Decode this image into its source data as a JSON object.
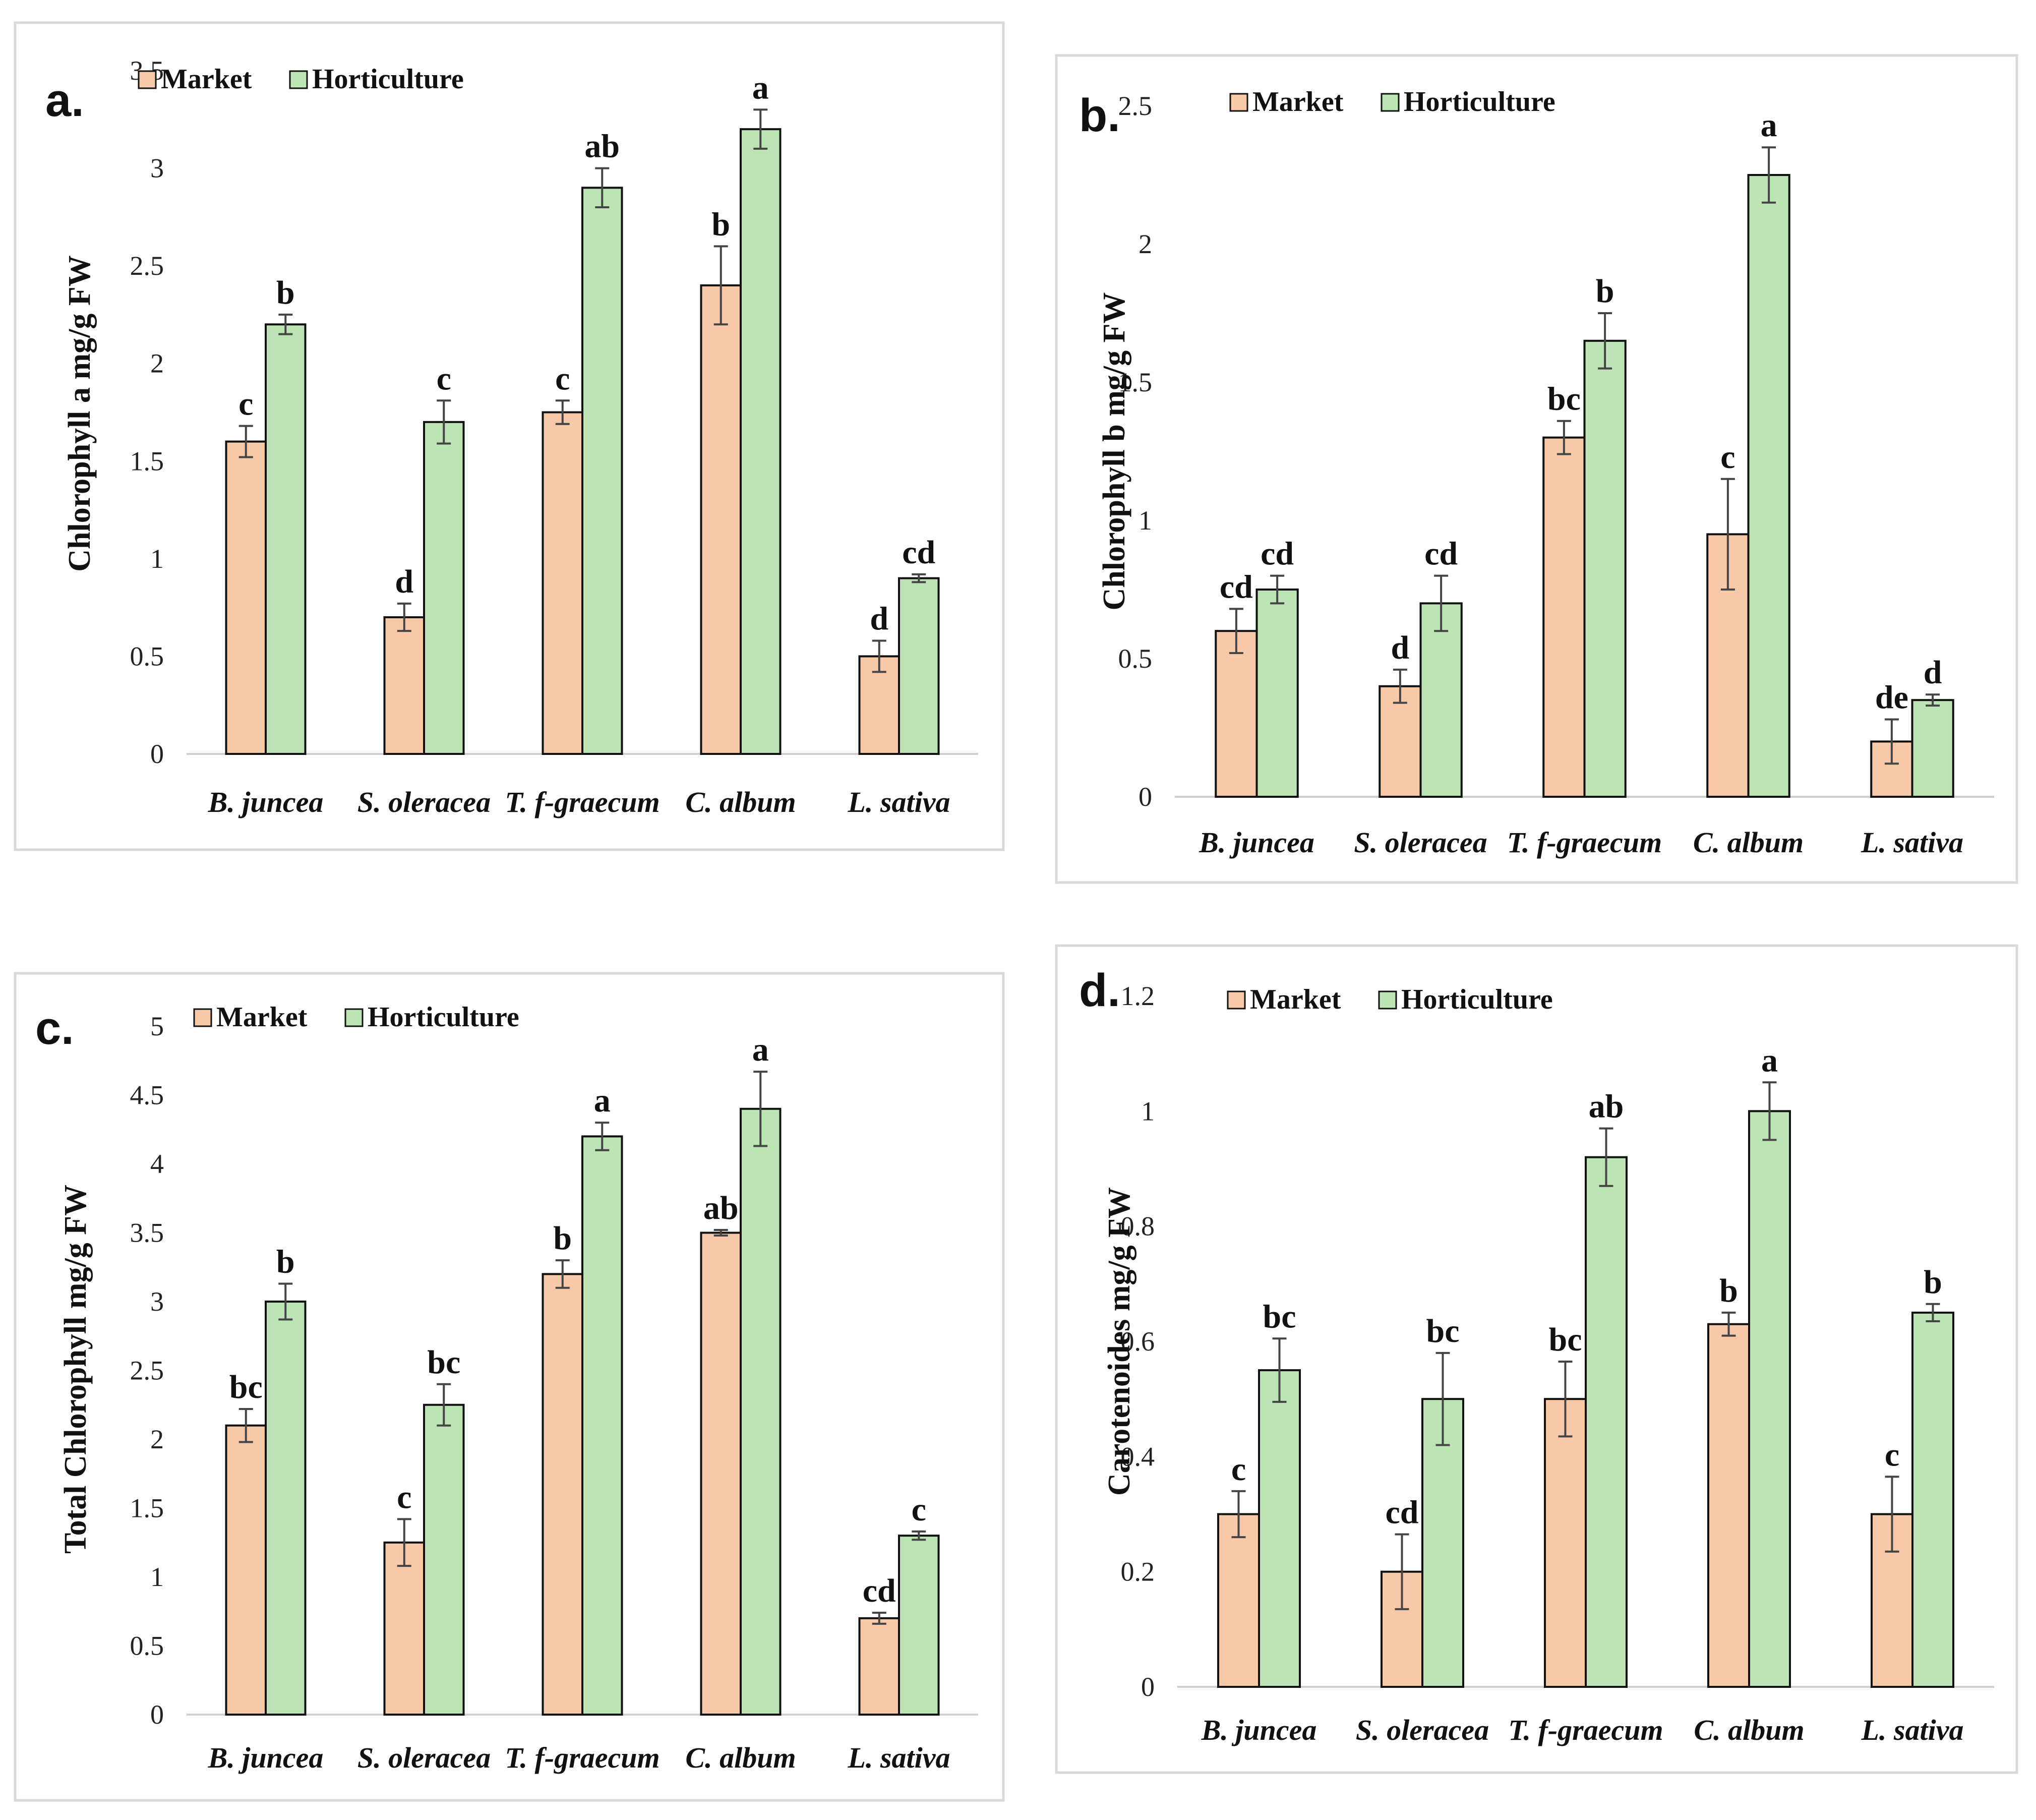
{
  "colors": {
    "market": "#f8c9a9",
    "horticulture": "#bde4b4",
    "outline": "#111111",
    "errorbar": "#444444",
    "panel_border": "#d9d9d9"
  },
  "chart_data": [
    {
      "type": "bar",
      "panel_label": "a.",
      "ylabel": "Chlorophyll  a mg/g FW",
      "ylim": [
        0,
        3.5
      ],
      "yticks": [
        "0",
        "0.5",
        "1",
        "1.5",
        "2",
        "2.5",
        "3",
        "3.5"
      ],
      "categories": [
        "B. juncea",
        "S. oleracea",
        "T. f-graecum",
        "C. album",
        "L. sativa"
      ],
      "series": [
        {
          "name": "Market",
          "values": [
            1.6,
            0.7,
            1.75,
            2.4,
            0.5
          ],
          "errors": [
            0.08,
            0.07,
            0.06,
            0.2,
            0.08
          ],
          "letters": [
            "c",
            "d",
            "c",
            "b",
            "d"
          ]
        },
        {
          "name": "Horticulture",
          "values": [
            2.2,
            1.7,
            2.9,
            3.2,
            0.9
          ],
          "errors": [
            0.05,
            0.11,
            0.1,
            0.1,
            0.02
          ],
          "letters": [
            "b",
            "c",
            "ab",
            "a",
            "cd"
          ]
        }
      ]
    },
    {
      "type": "bar",
      "panel_label": "b.",
      "ylabel": "Chlorophyll  b mg/g FW",
      "ylim": [
        0,
        2.5
      ],
      "yticks": [
        "0",
        "0.5",
        "1",
        "1.5",
        "2",
        "2.5"
      ],
      "categories": [
        "B. juncea",
        "S. oleracea",
        "T. f-graecum",
        "C. album",
        "L. sativa"
      ],
      "series": [
        {
          "name": "Market",
          "values": [
            0.6,
            0.4,
            1.3,
            0.95,
            0.2
          ],
          "errors": [
            0.08,
            0.06,
            0.06,
            0.2,
            0.08
          ],
          "letters": [
            "cd",
            "d",
            "bc",
            "c",
            "de"
          ]
        },
        {
          "name": "Horticulture",
          "values": [
            0.75,
            0.7,
            1.65,
            2.25,
            0.35
          ],
          "errors": [
            0.05,
            0.1,
            0.1,
            0.1,
            0.02
          ],
          "letters": [
            "cd",
            "cd",
            "b",
            "a",
            "d"
          ]
        }
      ]
    },
    {
      "type": "bar",
      "panel_label": "c.",
      "ylabel": "Total Chlorophyll  mg/g FW",
      "ylim": [
        0,
        5
      ],
      "yticks": [
        "0",
        "0.5",
        "1",
        "1.5",
        "2",
        "2.5",
        "3",
        "3.5",
        "4",
        "4.5",
        "5"
      ],
      "categories": [
        "B. juncea",
        "S. oleracea",
        "T. f-graecum",
        "C. album",
        "L. sativa"
      ],
      "series": [
        {
          "name": "Market",
          "values": [
            2.1,
            1.25,
            3.2,
            3.5,
            0.7
          ],
          "errors": [
            0.12,
            0.17,
            0.1,
            0.02,
            0.04
          ],
          "letters": [
            "bc",
            "c",
            "b",
            "ab",
            "cd"
          ]
        },
        {
          "name": "Horticulture",
          "values": [
            3.0,
            2.25,
            4.2,
            4.4,
            1.3
          ],
          "errors": [
            0.13,
            0.15,
            0.1,
            0.27,
            0.03
          ],
          "letters": [
            "b",
            "bc",
            "a",
            "a",
            "c"
          ]
        }
      ]
    },
    {
      "type": "bar",
      "panel_label": "d.",
      "ylabel": "Carotenoides mg/g FW",
      "ylim": [
        0,
        1.2
      ],
      "yticks": [
        "0",
        "0.2",
        "0.4",
        "0.6",
        "0.8",
        "1",
        "1.2"
      ],
      "categories": [
        "B. juncea",
        "S. oleracea",
        "T. f-graecum",
        "C. album",
        "L. sativa"
      ],
      "series": [
        {
          "name": "Market",
          "values": [
            0.3,
            0.2,
            0.5,
            0.63,
            0.3
          ],
          "errors": [
            0.04,
            0.065,
            0.065,
            0.02,
            0.065
          ],
          "letters": [
            "c",
            "cd",
            "bc",
            "b",
            "c"
          ]
        },
        {
          "name": "Horticulture",
          "values": [
            0.55,
            0.5,
            0.92,
            1.0,
            0.65
          ],
          "errors": [
            0.055,
            0.08,
            0.05,
            0.05,
            0.015
          ],
          "letters": [
            "bc",
            "bc",
            "ab",
            "a",
            "b"
          ]
        }
      ]
    }
  ]
}
